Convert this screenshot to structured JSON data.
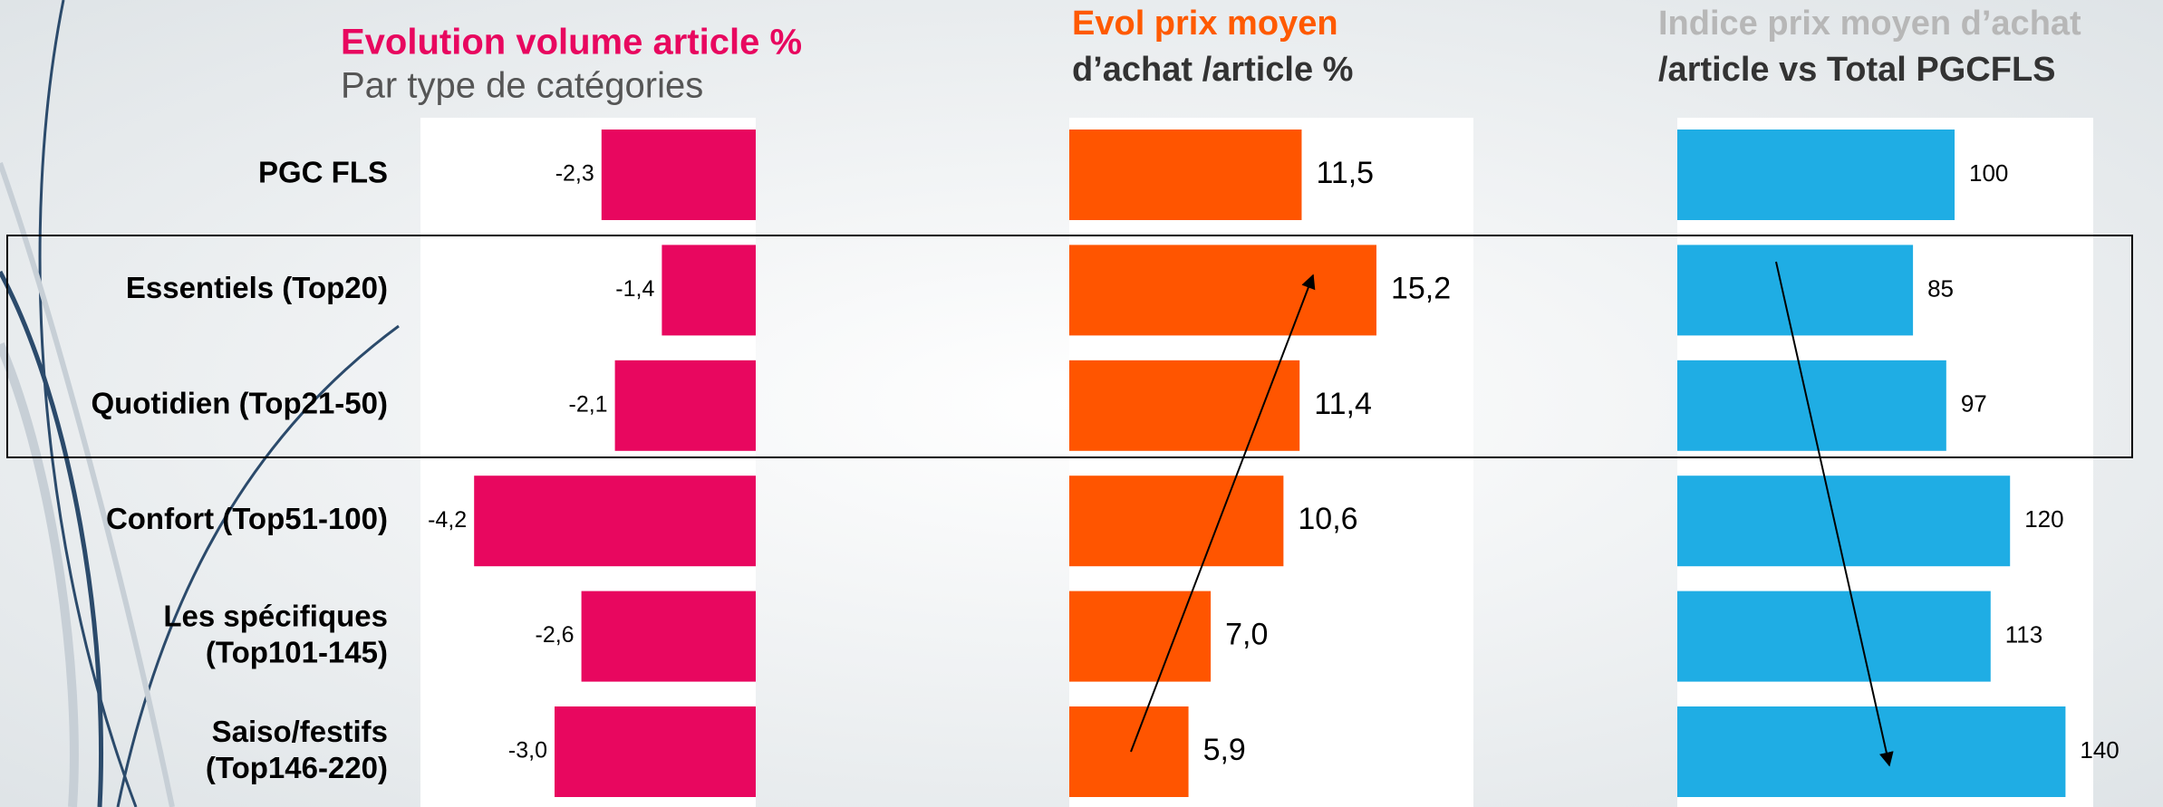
{
  "chart_data": [
    {
      "type": "hbar",
      "title": "Evolution volume article %",
      "subtitle": "Par type de catégories",
      "categories": [
        "PGC FLS",
        "Essentiels (Top20)",
        "Quotidien (Top21-50)",
        "Confort (Top51-100)",
        "Les spécifiques\n(Top101-145)",
        "Saiso/festifs\n(Top146-220)"
      ],
      "values": [
        -2.3,
        -1.4,
        -2.1,
        -4.2,
        -2.6,
        -3.0
      ],
      "value_labels": [
        "-2,3",
        "-1,4",
        "-2,1",
        "-4,2",
        "-2,6",
        "-3,0"
      ],
      "color": "#e8075f",
      "title_color": "#e8075f",
      "xlim": [
        -5,
        0
      ]
    },
    {
      "type": "hbar",
      "title": "Evol prix moyen",
      "subtitle": "d’achat /article %",
      "values": [
        11.5,
        15.2,
        11.4,
        10.6,
        7.0,
        5.9
      ],
      "value_labels": [
        "11,5",
        "15,2",
        "11,4",
        "10,6",
        "7,0",
        "5,9"
      ],
      "color": "#ff5500",
      "title_color": "#ff5a00",
      "xlim": [
        0,
        20
      ]
    },
    {
      "type": "hbar",
      "title": "Indice prix moyen d’achat",
      "subtitle": "/article vs Total PGCFLS",
      "values": [
        100,
        85,
        97,
        120,
        113,
        140
      ],
      "color": "#1fade4",
      "title_color": "#b7b7b7",
      "xlim": [
        0,
        150
      ]
    }
  ]
}
